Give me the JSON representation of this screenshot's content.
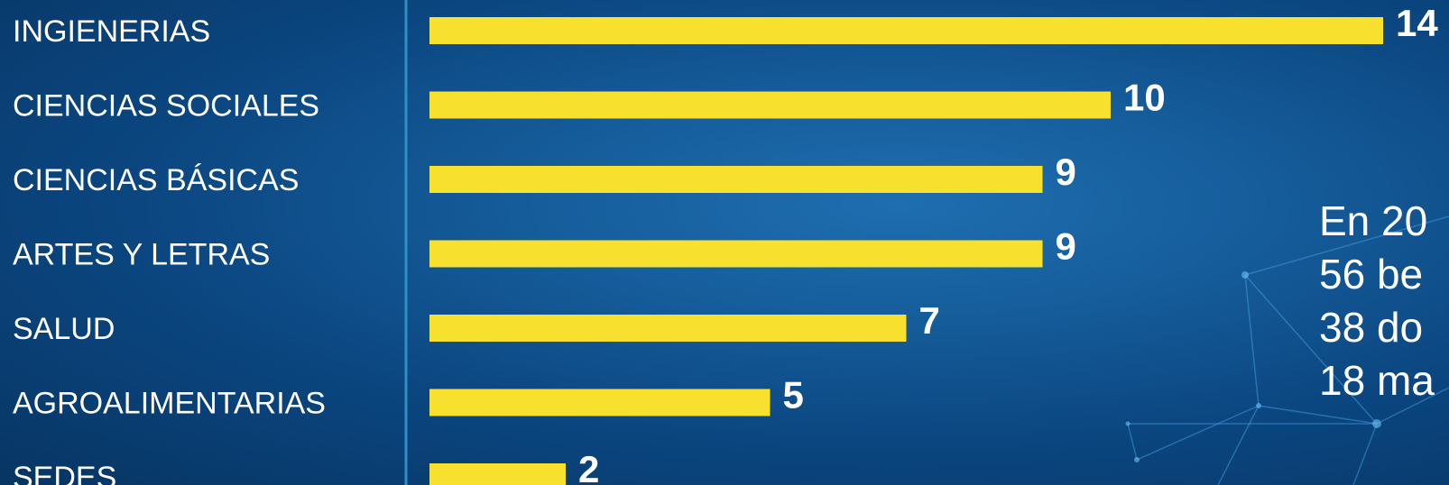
{
  "chart_data": {
    "type": "bar",
    "orientation": "horizontal",
    "categories": [
      "INGIENERIAS",
      "CIENCIAS SOCIALES",
      "CIENCIAS BÁSICAS",
      "ARTES Y LETRAS",
      "SALUD",
      "AGROALIMENTARIAS",
      "SEDES"
    ],
    "values": [
      14,
      10,
      9,
      9,
      7,
      5,
      2
    ],
    "value_labels": [
      "14",
      "10",
      "9",
      "9",
      "7",
      "5",
      "2"
    ],
    "xlim": [
      0,
      14
    ],
    "grid": false,
    "legend": "none",
    "colors": {
      "bar": "#f7e02e",
      "text": "#ffffff",
      "axis": "#2f8fc7"
    }
  },
  "side_text": {
    "lines": [
      "En 20",
      "56 be",
      "38 do",
      "18 ma"
    ]
  },
  "decoration": {
    "icon": "network-mesh-icon"
  }
}
